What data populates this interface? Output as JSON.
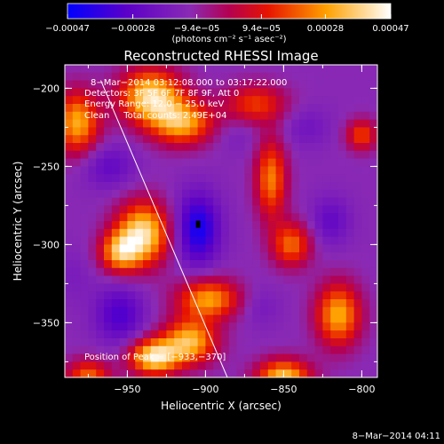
{
  "chart_data": {
    "type": "heatmap",
    "title": "Reconstructed RHESSI Image",
    "xlabel": "Heliocentric X (arcsec)",
    "ylabel": "Heliocentric Y (arcsec)",
    "xlim": [
      -990,
      -790
    ],
    "ylim": [
      -385,
      -185
    ],
    "x_ticks": [
      -950,
      -900,
      -850,
      -800
    ],
    "y_ticks": [
      -200,
      -250,
      -300,
      -350
    ],
    "x_tick_labels": [
      "−950",
      "−900",
      "−850",
      "−800"
    ],
    "y_tick_labels": [
      "−200",
      "−250",
      "−300",
      "−350"
    ],
    "colorbar": {
      "range": [
        -0.00047,
        0.00047
      ],
      "tick_labels": [
        "−0.00047",
        "−0.00028",
        "−9.4e−05",
        "9.4e−05",
        "0.00028",
        "0.00047"
      ],
      "unit_label": "(photons cm⁻² s⁻¹ asec⁻²)",
      "colors": [
        "#0000ff",
        "#5a00c8",
        "#8a2ab4",
        "#c8001e",
        "#ff5a00",
        "#ffc800",
        "#ffffff"
      ]
    },
    "annotations": {
      "time": "8−Mar−2014 03:12:08.000 to 03:17:22.000",
      "detectors": "Detectors: 3F 5F 6F 7F 8F 9F, Att 0",
      "energy": "Energy Range: 12.0 − 25.0 keV",
      "clean": "Clean     Total counts: 2.49E+04",
      "peak": "Position of Peak = [−933,−370]"
    },
    "limb_line": {
      "x": [
        -967,
        -886
      ],
      "y": [
        -195,
        -385
      ]
    },
    "peak_position": [
      -933,
      -370
    ],
    "blobs": [
      {
        "x": -935,
        "y": -205,
        "v": 0.00045,
        "sx": 14,
        "sy": 12
      },
      {
        "x": -915,
        "y": -222,
        "v": 0.00035,
        "sx": 14,
        "sy": 10
      },
      {
        "x": -982,
        "y": -222,
        "v": 0.00035,
        "sx": 10,
        "sy": 14
      },
      {
        "x": -940,
        "y": -293,
        "v": 0.00046,
        "sx": 12,
        "sy": 14
      },
      {
        "x": -955,
        "y": -305,
        "v": 0.0003,
        "sx": 9,
        "sy": 9
      },
      {
        "x": -868,
        "y": -210,
        "v": 0.00018,
        "sx": 14,
        "sy": 9
      },
      {
        "x": -858,
        "y": -258,
        "v": 0.00028,
        "sx": 7,
        "sy": 18
      },
      {
        "x": -845,
        "y": -300,
        "v": 0.00025,
        "sx": 9,
        "sy": 10
      },
      {
        "x": -898,
        "y": -335,
        "v": 0.00033,
        "sx": 14,
        "sy": 9
      },
      {
        "x": -910,
        "y": -362,
        "v": 0.00038,
        "sx": 12,
        "sy": 10
      },
      {
        "x": -933,
        "y": -372,
        "v": 0.00047,
        "sx": 11,
        "sy": 8
      },
      {
        "x": -815,
        "y": -345,
        "v": 0.00035,
        "sx": 10,
        "sy": 14
      },
      {
        "x": -850,
        "y": -385,
        "v": 0.0004,
        "sx": 12,
        "sy": 8
      },
      {
        "x": -975,
        "y": -385,
        "v": 0.00025,
        "sx": 10,
        "sy": 8
      },
      {
        "x": -800,
        "y": -230,
        "v": 0.0002,
        "sx": 7,
        "sy": 7
      },
      {
        "x": -905,
        "y": -290,
        "v": -0.00047,
        "sx": 10,
        "sy": 16
      },
      {
        "x": -955,
        "y": -345,
        "v": -0.00035,
        "sx": 11,
        "sy": 13
      },
      {
        "x": -962,
        "y": -250,
        "v": -0.00028,
        "sx": 12,
        "sy": 10
      },
      {
        "x": -835,
        "y": -225,
        "v": -0.00022,
        "sx": 11,
        "sy": 9
      },
      {
        "x": -820,
        "y": -285,
        "v": -0.00028,
        "sx": 9,
        "sy": 11
      },
      {
        "x": -880,
        "y": -230,
        "v": -0.00018,
        "sx": 10,
        "sy": 8
      },
      {
        "x": -865,
        "y": -340,
        "v": -0.0002,
        "sx": 9,
        "sy": 9
      },
      {
        "x": -985,
        "y": -320,
        "v": -0.00018,
        "sx": 9,
        "sy": 12
      }
    ]
  },
  "footer": {
    "date": "8−Mar−2014 04:11"
  }
}
